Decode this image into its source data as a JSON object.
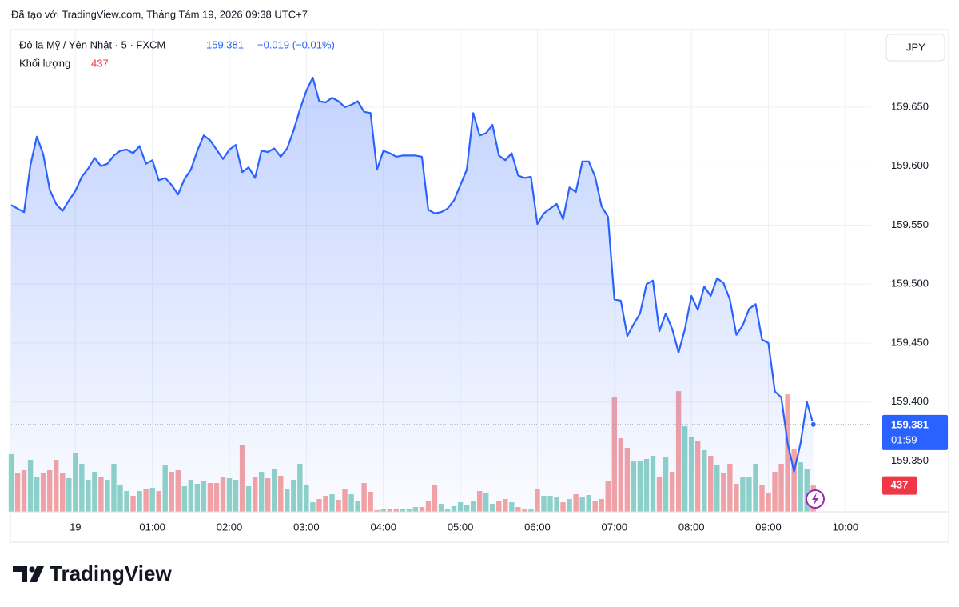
{
  "chart_data": {
    "type": "line",
    "credit": "Đã tạo với TradingView.com, Tháng Tám 19, 2026 09:38 UTC+7",
    "change": "−0.019 (−0.01%)",
    "currency": "JPY",
    "countdown": "01:59",
    "logo": "TradingView",
    "grid": true,
    "xlim": [
      -50,
      620
    ],
    "xticks": [
      {
        "value": 0,
        "label": "19"
      },
      {
        "value": 60,
        "label": "01:00"
      },
      {
        "value": 120,
        "label": "02:00"
      },
      {
        "value": 180,
        "label": "03:00"
      },
      {
        "value": 240,
        "label": "04:00"
      },
      {
        "value": 300,
        "label": "05:00"
      },
      {
        "value": 360,
        "label": "06:00"
      },
      {
        "value": 420,
        "label": "07:00"
      },
      {
        "value": 480,
        "label": "08:00"
      },
      {
        "value": 540,
        "label": "09:00"
      },
      {
        "value": 600,
        "label": "10:00"
      }
    ],
    "ylim": [
      159.307,
      159.715
    ],
    "yticks": [
      {
        "value": 159.35,
        "label": "159.350"
      },
      {
        "value": 159.4,
        "label": "159.400"
      },
      {
        "value": 159.45,
        "label": "159.450"
      },
      {
        "value": 159.5,
        "label": "159.500"
      },
      {
        "value": 159.55,
        "label": "159.550"
      },
      {
        "value": 159.6,
        "label": "159.600"
      },
      {
        "value": 159.65,
        "label": "159.650"
      }
    ],
    "y2lim": [
      0,
      8000
    ],
    "x": [
      -50,
      -45,
      -40,
      -35,
      -30,
      -25,
      -20,
      -15,
      -10,
      -5,
      0,
      5,
      10,
      15,
      20,
      25,
      30,
      35,
      40,
      45,
      50,
      55,
      60,
      65,
      70,
      75,
      80,
      85,
      90,
      95,
      100,
      105,
      110,
      115,
      120,
      125,
      130,
      135,
      140,
      145,
      150,
      155,
      160,
      165,
      170,
      175,
      180,
      185,
      190,
      195,
      200,
      205,
      210,
      215,
      220,
      225,
      230,
      235,
      240,
      245,
      250,
      255,
      260,
      265,
      270,
      275,
      280,
      285,
      290,
      295,
      300,
      305,
      310,
      315,
      320,
      325,
      330,
      335,
      340,
      345,
      350,
      355,
      360,
      365,
      370,
      375,
      380,
      385,
      390,
      395,
      400,
      405,
      410,
      415,
      420,
      425,
      430,
      435,
      440,
      445,
      450,
      455,
      460,
      465,
      470,
      475,
      480,
      485,
      490,
      495,
      500,
      505,
      510,
      515,
      520,
      525,
      530,
      535,
      540,
      545,
      550,
      555,
      560,
      565,
      570,
      575
    ],
    "series": [
      {
        "name": "Đô la Mỹ / Yên Nhật · 5 · FXCM",
        "color": "#2962ff",
        "values": [
          159.567,
          159.564,
          159.561,
          159.601,
          159.625,
          159.61,
          159.58,
          159.568,
          159.562,
          159.571,
          159.579,
          159.591,
          159.598,
          159.607,
          159.6,
          159.602,
          159.609,
          159.613,
          159.614,
          159.611,
          159.617,
          159.602,
          159.605,
          159.588,
          159.59,
          159.584,
          159.576,
          159.589,
          159.597,
          159.613,
          159.626,
          159.622,
          159.614,
          159.606,
          159.614,
          159.618,
          159.595,
          159.599,
          159.59,
          159.613,
          159.612,
          159.615,
          159.608,
          159.615,
          159.63,
          159.648,
          159.664,
          159.675,
          159.655,
          159.654,
          159.658,
          159.655,
          159.65,
          159.652,
          159.655,
          159.646,
          159.645,
          159.597,
          159.613,
          159.611,
          159.608,
          159.609,
          159.609,
          159.609,
          159.608,
          159.563,
          159.56,
          159.561,
          159.564,
          159.571,
          159.584,
          159.597,
          159.645,
          159.626,
          159.628,
          159.635,
          159.609,
          159.605,
          159.611,
          159.592,
          159.59,
          159.591,
          159.551,
          159.56,
          159.564,
          159.568,
          159.555,
          159.582,
          159.578,
          159.604,
          159.604,
          159.591,
          159.566,
          159.557,
          159.487,
          159.486,
          159.456,
          159.466,
          159.475,
          159.5,
          159.503,
          159.46,
          159.475,
          159.462,
          159.442,
          159.462,
          159.49,
          159.478,
          159.498,
          159.49,
          159.505,
          159.501,
          159.487,
          159.457,
          159.465,
          159.479,
          159.483,
          159.453,
          159.45,
          159.409,
          159.404,
          159.365,
          159.341,
          159.365,
          159.4,
          159.381
        ]
      },
      {
        "name": "Khối lượng",
        "type": "bar",
        "axis": "y2",
        "up_color": "#8fd3c8",
        "down_color": "#f5a3a3",
        "label_color": "#f23645",
        "values": [
          956,
          638,
          691,
          863,
          571,
          638,
          691,
          863,
          638,
          558,
          983,
          797,
          531,
          664,
          584,
          531,
          797,
          452,
          345,
          266,
          345,
          372,
          398,
          345,
          770,
          664,
          691,
          425,
          531,
          465,
          505,
          478,
          478,
          571,
          558,
          531,
          1116,
          425,
          571,
          664,
          558,
          704,
          598,
          372,
          531,
          797,
          452,
          159,
          212,
          266,
          292,
          199,
          372,
          292,
          186,
          478,
          332,
          27,
          40,
          53,
          40,
          53,
          53,
          80,
          80,
          186,
          438,
          133,
          53,
          93,
          159,
          106,
          186,
          345,
          319,
          133,
          173,
          212,
          159,
          80,
          53,
          53,
          372,
          266,
          266,
          239,
          159,
          212,
          292,
          239,
          279,
          186,
          212,
          518,
          1900,
          1222,
          1063,
          837,
          837,
          877,
          930,
          571,
          903,
          664,
          2005,
          1421,
          1248,
          1182,
          1023,
          930,
          784,
          651,
          797,
          465,
          571,
          571,
          797,
          452,
          319,
          664,
          797,
          1952,
          1036,
          823,
          717,
          437
        ]
      }
    ]
  }
}
